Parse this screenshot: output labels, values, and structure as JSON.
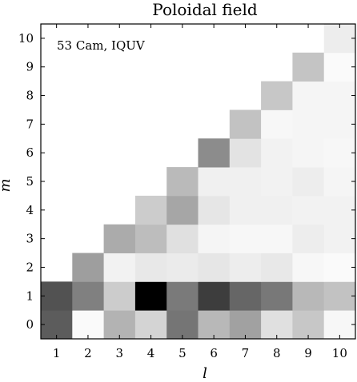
{
  "chart_data": {
    "type": "heatmap",
    "title": "Poloidal field",
    "annotation": "53 Cam, IQUV",
    "xlabel": "l",
    "ylabel": "m",
    "x": [
      1,
      2,
      3,
      4,
      5,
      6,
      7,
      8,
      9,
      10
    ],
    "y": [
      0,
      1,
      2,
      3,
      4,
      5,
      6,
      7,
      8,
      9,
      10
    ],
    "xlim": [
      0.5,
      10.5
    ],
    "ylim": [
      -0.5,
      10.5
    ],
    "colormap": "grayscale (white = 0, black = 1)",
    "grid": false,
    "values": [
      [
        0.64,
        0.02,
        0.3,
        0.17,
        0.54,
        0.28,
        0.37,
        0.12,
        0.22,
        0.03
      ],
      [
        0.68,
        0.5,
        0.2,
        1.0,
        0.52,
        0.76,
        0.6,
        0.53,
        0.28,
        0.24
      ],
      [
        null,
        0.38,
        0.05,
        0.09,
        0.08,
        0.1,
        0.07,
        0.09,
        0.03,
        0.02
      ],
      [
        null,
        null,
        0.33,
        0.26,
        0.12,
        0.04,
        0.03,
        0.03,
        0.07,
        0.05
      ],
      [
        null,
        null,
        null,
        0.2,
        0.35,
        0.1,
        0.06,
        0.06,
        0.05,
        0.05
      ],
      [
        null,
        null,
        null,
        null,
        0.27,
        0.06,
        0.06,
        0.05,
        0.07,
        0.04
      ],
      [
        null,
        null,
        null,
        null,
        null,
        0.45,
        0.11,
        0.05,
        0.04,
        0.03
      ],
      [
        null,
        null,
        null,
        null,
        null,
        null,
        0.24,
        0.03,
        0.04,
        0.04
      ],
      [
        null,
        null,
        null,
        null,
        null,
        null,
        null,
        0.22,
        0.04,
        0.04
      ],
      [
        null,
        null,
        null,
        null,
        null,
        null,
        null,
        null,
        0.23,
        0.02
      ],
      [
        null,
        null,
        null,
        null,
        null,
        null,
        null,
        null,
        null,
        0.07
      ]
    ]
  }
}
